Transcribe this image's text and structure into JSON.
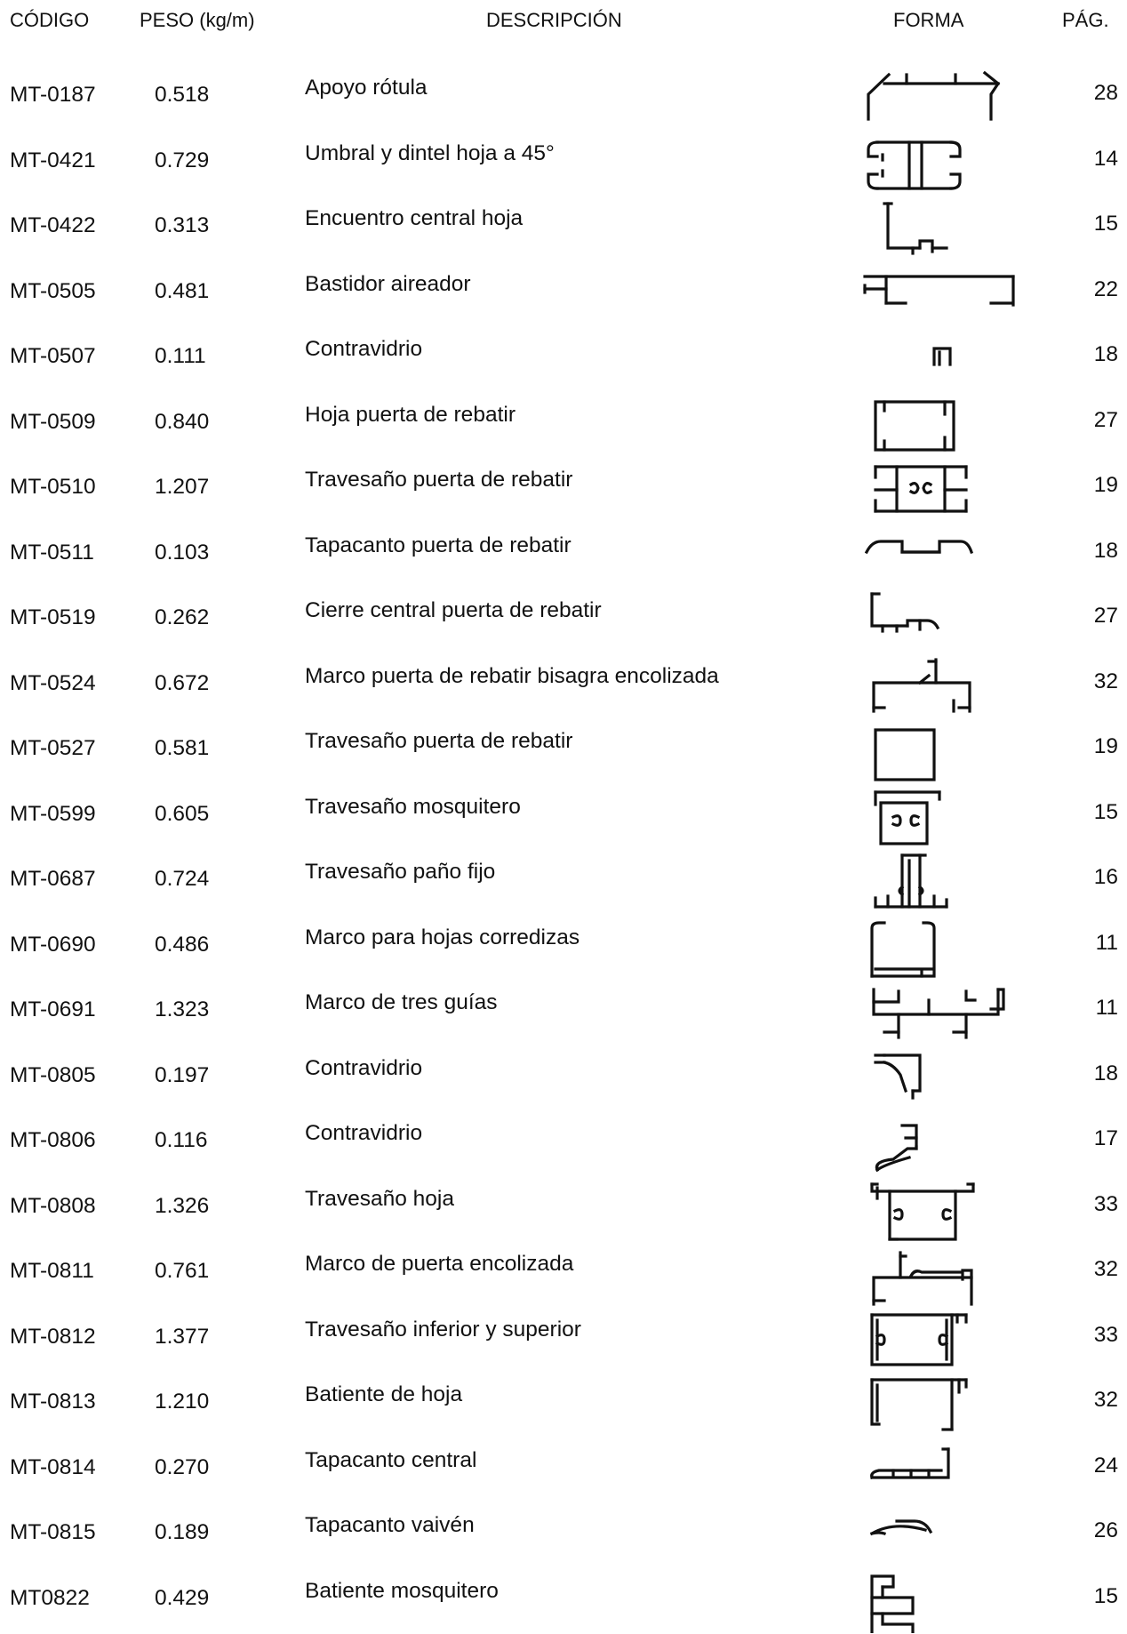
{
  "header": {
    "codigo": "CÓDIGO",
    "peso": "PESO (kg/m)",
    "descripcion": "DESCRIPCIÓN",
    "forma": "FORMA",
    "pag": "PÁG."
  },
  "rows": [
    {
      "code": "MT-0187",
      "peso": "0.518",
      "desc": "Apoyo rótula",
      "pag": "28",
      "shape": "apoyo-rotula-profile-icon"
    },
    {
      "code": "MT-0421",
      "peso": "0.729",
      "desc": "Umbral y dintel hoja a 45°",
      "pag": "14",
      "shape": "umbral-dintel-profile-icon"
    },
    {
      "code": "MT-0422",
      "peso": "0.313",
      "desc": "Encuentro central hoja",
      "pag": "15",
      "shape": "encuentro-central-profile-icon"
    },
    {
      "code": "MT-0505",
      "peso": "0.481",
      "desc": "Bastidor aireador",
      "pag": "22",
      "shape": "bastidor-aireador-profile-icon"
    },
    {
      "code": "MT-0507",
      "peso": "0.111",
      "desc": "Contravidrio",
      "pag": "18",
      "shape": "contravidrio-small-profile-icon"
    },
    {
      "code": "MT-0509",
      "peso": "0.840",
      "desc": "Hoja puerta de rebatir",
      "pag": "27",
      "shape": "hoja-puerta-profile-icon"
    },
    {
      "code": "MT-0510",
      "peso": "1.207",
      "desc": "Travesaño puerta de rebatir",
      "pag": "19",
      "shape": "travesano-puerta-double-profile-icon"
    },
    {
      "code": "MT-0511",
      "peso": "0.103",
      "desc": "Tapacanto puerta de rebatir",
      "pag": "18",
      "shape": "tapacanto-puerta-profile-icon"
    },
    {
      "code": "MT-0519",
      "peso": "0.262",
      "desc": "Cierre central puerta de rebatir",
      "pag": "27",
      "shape": "cierre-central-profile-icon"
    },
    {
      "code": "MT-0524",
      "peso": "0.672",
      "desc": "Marco puerta de rebatir bisagra encolizada",
      "pag": "32",
      "shape": "marco-puerta-bisagra-profile-icon"
    },
    {
      "code": "MT-0527",
      "peso": "0.581",
      "desc": "Travesaño puerta de rebatir",
      "pag": "19",
      "shape": "travesano-puerta-box-profile-icon"
    },
    {
      "code": "MT-0599",
      "peso": "0.605",
      "desc": "Travesaño mosquitero",
      "pag": "15",
      "shape": "travesano-mosquitero-profile-icon"
    },
    {
      "code": "MT-0687",
      "peso": "0.724",
      "desc": "Travesaño paño fijo",
      "pag": "16",
      "shape": "travesano-pano-fijo-profile-icon"
    },
    {
      "code": "MT-0690",
      "peso": "0.486",
      "desc": "Marco para hojas corredizas",
      "pag": "11",
      "shape": "marco-corredizas-profile-icon"
    },
    {
      "code": "MT-0691",
      "peso": "1.323",
      "desc": "Marco de tres guías",
      "pag": "11",
      "shape": "marco-tres-guias-profile-icon"
    },
    {
      "code": "MT-0805",
      "peso": "0.197",
      "desc": "Contravidrio",
      "pag": "18",
      "shape": "contravidrio-curved-profile-icon"
    },
    {
      "code": "MT-0806",
      "peso": "0.116",
      "desc": "Contravidrio",
      "pag": "17",
      "shape": "contravidrio-hook-profile-icon"
    },
    {
      "code": "MT-0808",
      "peso": "1.326",
      "desc": "Travesaño hoja",
      "pag": "33",
      "shape": "travesano-hoja-profile-icon"
    },
    {
      "code": "MT-0811",
      "peso": "0.761",
      "desc": "Marco de puerta encolizada",
      "pag": "32",
      "shape": "marco-puerta-encolizada-profile-icon"
    },
    {
      "code": "MT-0812",
      "peso": "1.377",
      "desc": "Travesaño inferior y superior",
      "pag": "33",
      "shape": "travesano-inferior-superior-profile-icon"
    },
    {
      "code": "MT-0813",
      "peso": "1.210",
      "desc": "Batiente de hoja",
      "pag": "32",
      "shape": "batiente-hoja-profile-icon"
    },
    {
      "code": "MT-0814",
      "peso": "0.270",
      "desc": "Tapacanto central",
      "pag": "24",
      "shape": "tapacanto-central-profile-icon"
    },
    {
      "code": "MT-0815",
      "peso": "0.189",
      "desc": "Tapacanto vaivén",
      "pag": "26",
      "shape": "tapacanto-vaiven-profile-icon"
    },
    {
      "code": "MT0822",
      "peso": "0.429",
      "desc": "Batiente mosquitero",
      "pag": "15",
      "shape": "batiente-mosquitero-profile-icon"
    }
  ]
}
